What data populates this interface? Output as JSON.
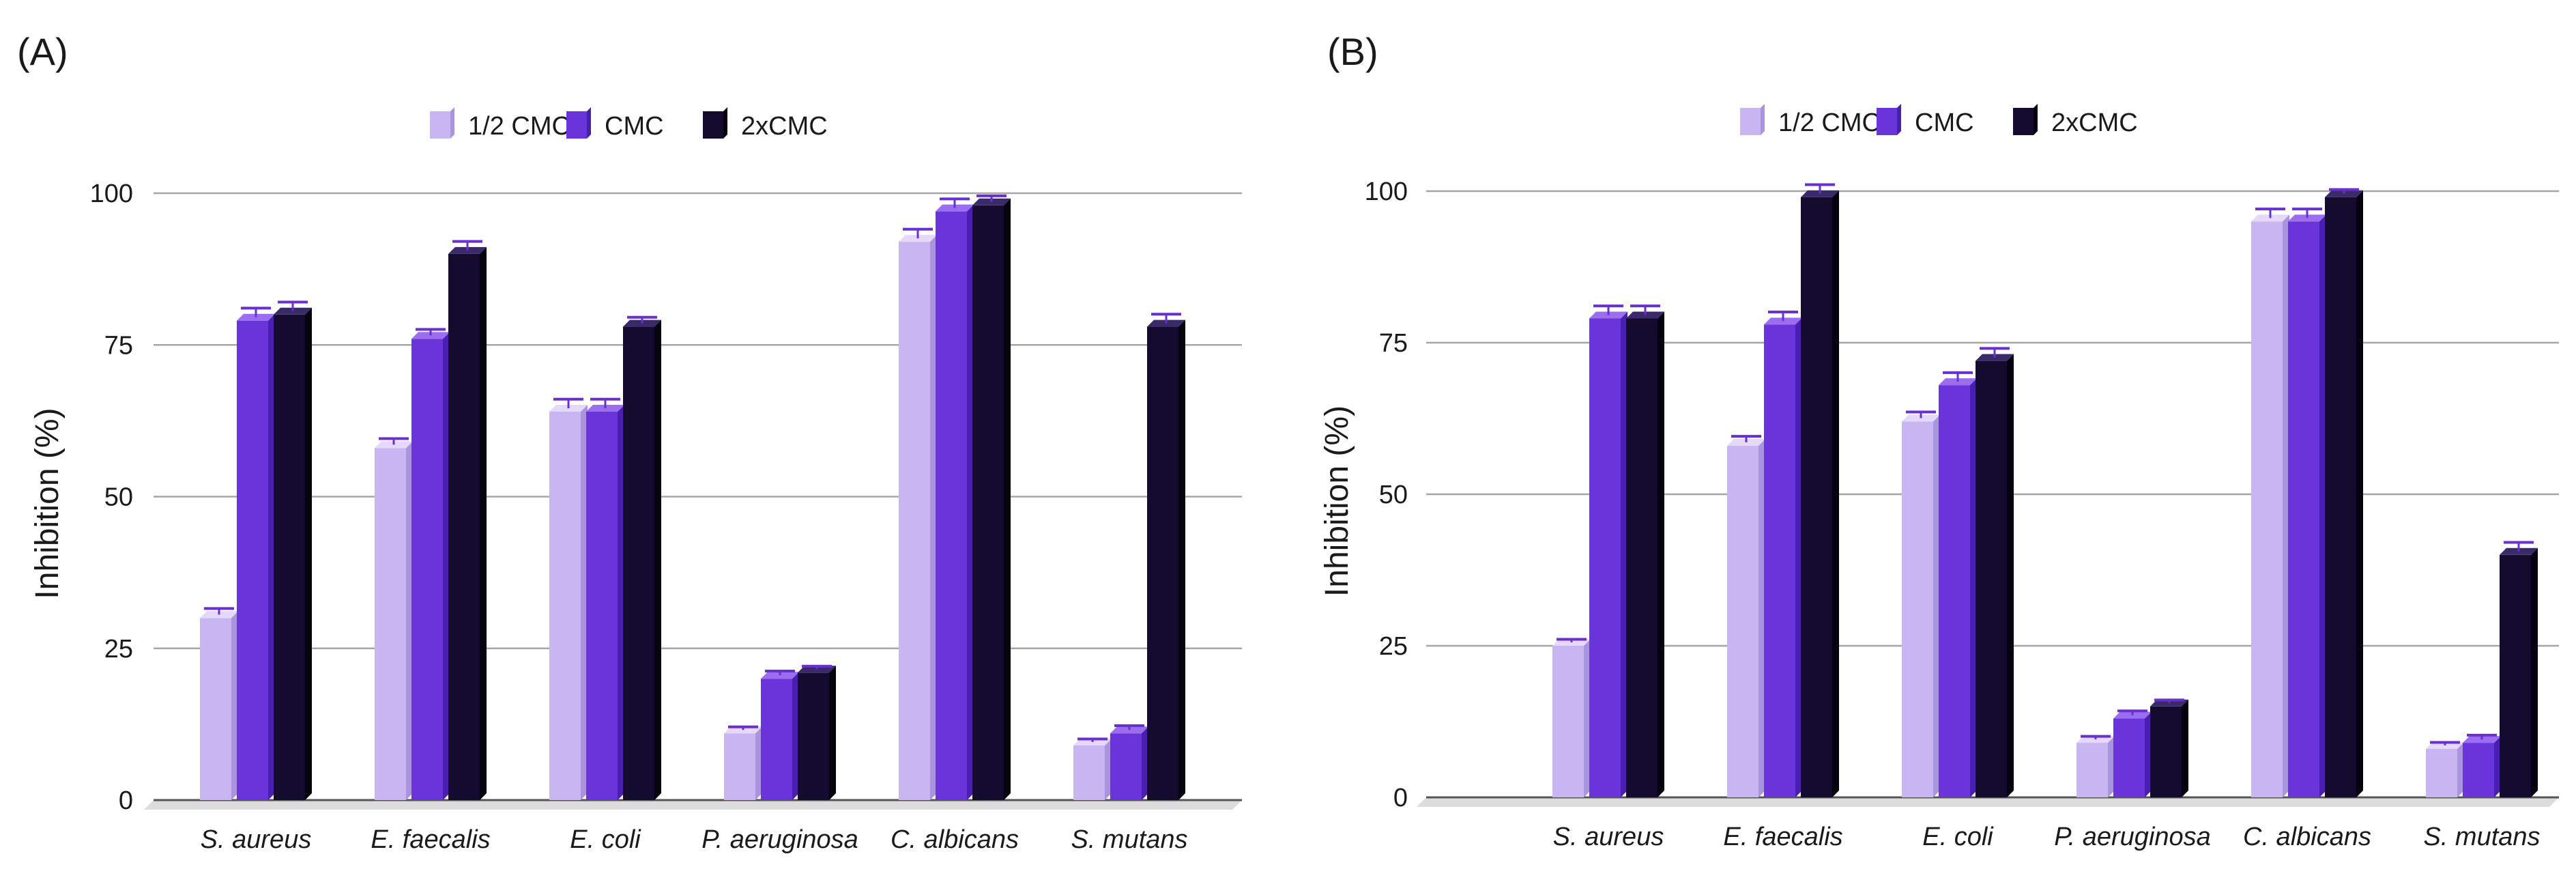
{
  "chart_data": [
    {
      "type": "bar",
      "panel_label": "(A)",
      "title": "",
      "xlabel": "",
      "ylabel": "Inhibition (%)",
      "ylim": [
        0,
        100
      ],
      "yticks": [
        0,
        25,
        50,
        75,
        100
      ],
      "grid": true,
      "legend_position": "top-center",
      "categories": [
        "S. aureus",
        "E. faecalis",
        "E. coli",
        "P. aeruginosa",
        "C. albicans",
        "S. mutans"
      ],
      "series": [
        {
          "name": "1/2 CMC",
          "values": [
            30,
            58,
            64,
            11,
            92,
            9
          ],
          "errors": [
            1,
            1,
            1.5,
            0.5,
            1.5,
            0.5
          ]
        },
        {
          "name": "CMC",
          "values": [
            79,
            76,
            64,
            20,
            97,
            11
          ],
          "errors": [
            1.5,
            1,
            1.5,
            0.7,
            1.5,
            0.7
          ]
        },
        {
          "name": "2xCMC",
          "values": [
            80,
            90,
            78,
            21,
            98,
            78
          ],
          "errors": [
            1.5,
            1.5,
            1,
            0.5,
            1,
            1.5
          ]
        }
      ]
    },
    {
      "type": "bar",
      "panel_label": "(B)",
      "title": "",
      "xlabel": "",
      "ylabel": "Inhibition (%)",
      "ylim": [
        0,
        100
      ],
      "yticks": [
        0,
        25,
        50,
        75,
        100
      ],
      "grid": true,
      "legend_position": "top-center",
      "categories": [
        "S. aureus",
        "E. faecalis",
        "E. coli",
        "P. aeruginosa",
        "C. albicans",
        "S. mutans"
      ],
      "series": [
        {
          "name": "1/2 CMC",
          "values": [
            25,
            58,
            62,
            9,
            95,
            8
          ],
          "errors": [
            0.5,
            1,
            1,
            0.5,
            1.5,
            0.5
          ]
        },
        {
          "name": "CMC",
          "values": [
            79,
            78,
            68,
            13,
            95,
            9
          ],
          "errors": [
            1.5,
            1.5,
            1.5,
            0.7,
            1.5,
            0.7
          ]
        },
        {
          "name": "2xCMC",
          "values": [
            79,
            99,
            72,
            15,
            99,
            40
          ],
          "errors": [
            1.5,
            1.5,
            1.5,
            0.5,
            0.7,
            1.5
          ]
        }
      ]
    }
  ],
  "colors": {
    "series": [
      "#c8b6f2",
      "#6a34db",
      "#150b2e"
    ],
    "series_top": [
      "#e4d9fb",
      "#9b6ef0",
      "#3a2a6a"
    ],
    "series_side": [
      "#a994dd",
      "#4a1fb0",
      "#06030f"
    ],
    "grid": "#a6a6a6",
    "floor": "#dcdcdc",
    "error_bar": "#6a2fd0",
    "text": "#1a1a1a"
  }
}
